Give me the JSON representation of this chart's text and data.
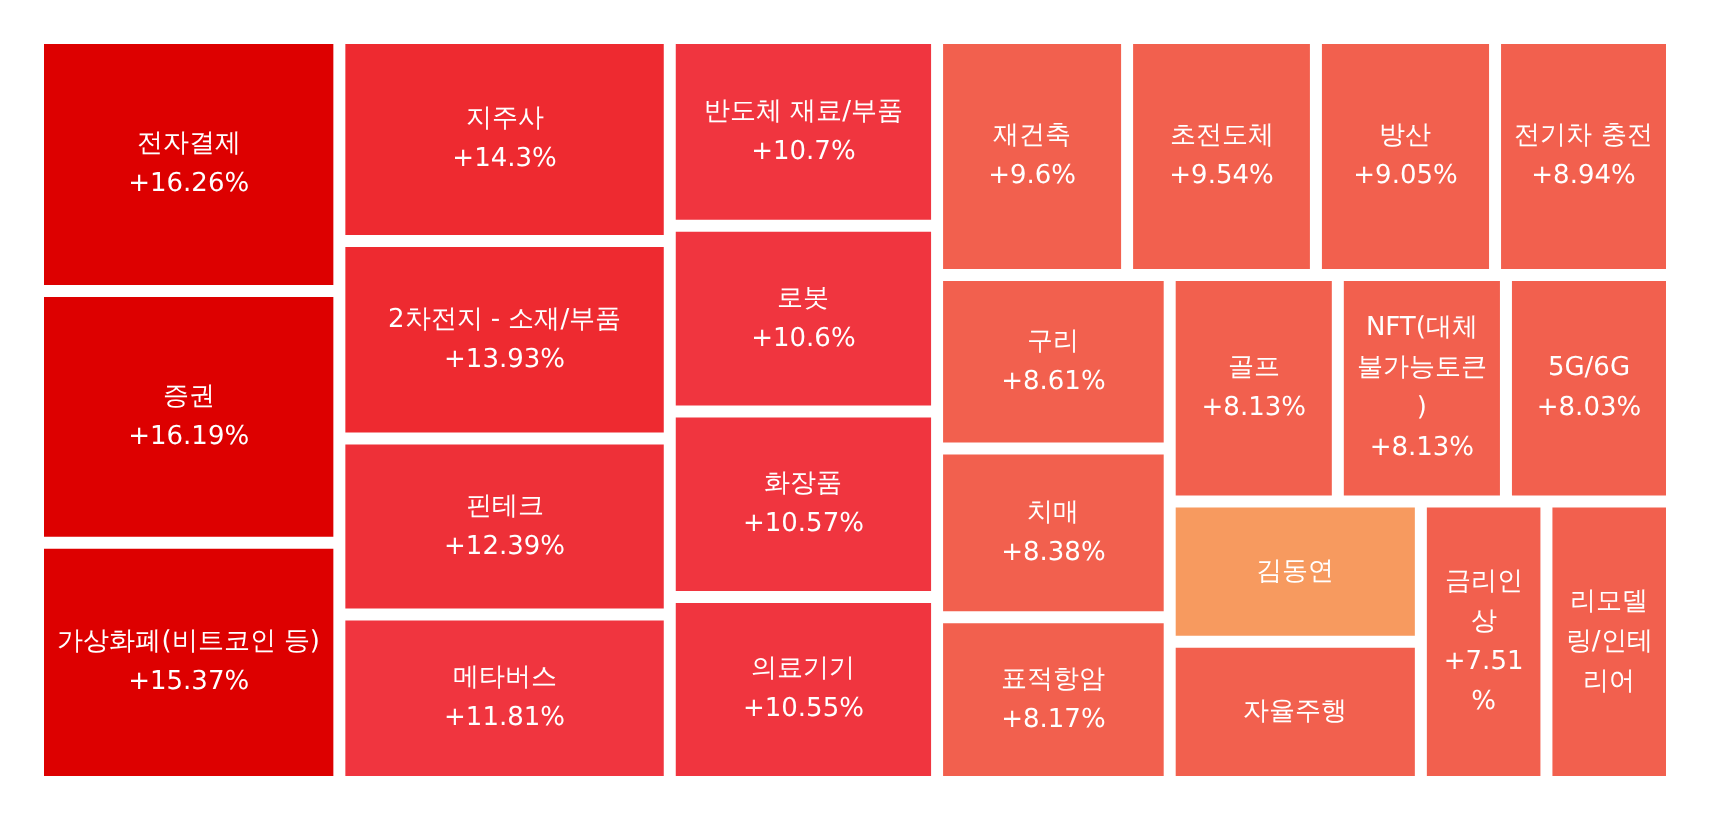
{
  "chart_data": {
    "type": "other",
    "categories": [
      "전자결제",
      "증권",
      "가상화폐(비트코인 등)",
      "지주사",
      "2차전지 - 소재/부품",
      "핀테크",
      "메타버스",
      "반도체 재료/부품",
      "로봇",
      "화장품",
      "의료기기",
      "재건축",
      "초전도체",
      "방산",
      "전기차 충전",
      "구리",
      "치매",
      "리모델링/인테리어",
      "표적항암",
      "NFT(대체불가능토큰)",
      "골프",
      "5G/6G",
      "금리인상",
      "자율주행",
      "김동연"
    ],
    "values": [
      16.26,
      16.19,
      15.37,
      14.3,
      13.93,
      12.39,
      11.81,
      10.7,
      10.6,
      10.57,
      10.55,
      9.6,
      9.54,
      9.05,
      8.94,
      8.61,
      8.38,
      null,
      8.17,
      8.13,
      8.13,
      8.03,
      7.51,
      null,
      null
    ],
    "value_labels": [
      "+16.26%",
      "+16.19%",
      "+15.37%",
      "+14.3%",
      "+13.93%",
      "+12.39%",
      "+11.81%",
      "+10.7%",
      "+10.6%",
      "+10.57%",
      "+10.55%",
      "+9.6%",
      "+9.54%",
      "+9.05%",
      "+8.94%",
      "+8.61%",
      "+8.38%",
      null,
      "+8.17%",
      "+8.13%",
      "+8.13%",
      "+8.03%",
      "+7.51%",
      null,
      null
    ],
    "colors": [
      "#dd0000",
      "#dd0000",
      "#dd0000",
      "#ee2a30",
      "#ee2a30",
      "#ee3038",
      "#f0353f",
      "#f0353f",
      "#f0353f",
      "#f0353f",
      "#f0353f",
      "#f2604e",
      "#f2604e",
      "#f2604e",
      "#f2604e",
      "#f2604e",
      "#f2604e",
      "#f2604e",
      "#f2604e",
      "#f2604e",
      "#f2604e",
      "#f2604e",
      "#f2604e",
      "#f2604e",
      "#f79a5f"
    ]
  }
}
